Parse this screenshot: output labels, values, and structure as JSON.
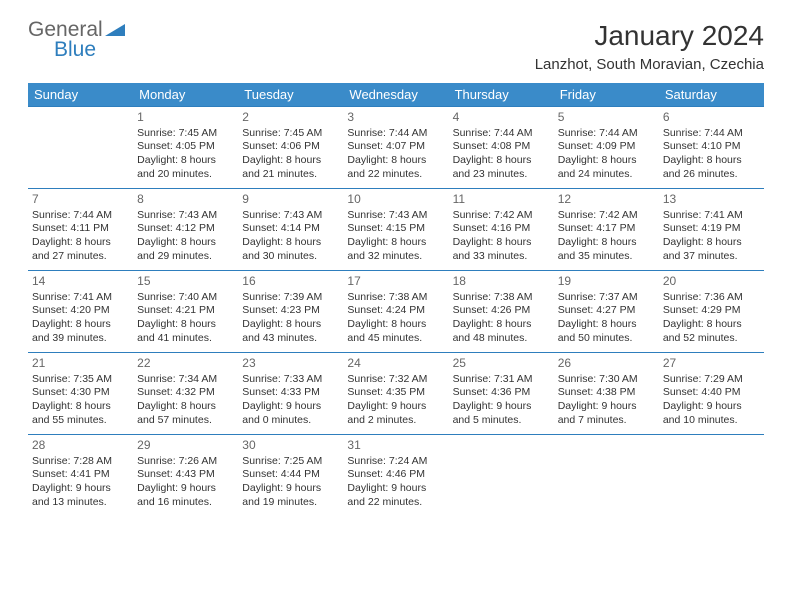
{
  "logo": {
    "line1": "General",
    "line2": "Blue"
  },
  "title": "January 2024",
  "location": "Lanzhot, South Moravian, Czechia",
  "colors": {
    "header_bg": "#3a8bc9",
    "header_text": "#ffffff",
    "row_border": "#2e7ebd",
    "logo_blue": "#2e7ebd",
    "logo_gray": "#666666",
    "text": "#333333"
  },
  "weekdays": [
    "Sunday",
    "Monday",
    "Tuesday",
    "Wednesday",
    "Thursday",
    "Friday",
    "Saturday"
  ],
  "weeks": [
    [
      null,
      {
        "day": "1",
        "sunrise": "Sunrise: 7:45 AM",
        "sunset": "Sunset: 4:05 PM",
        "dl1": "Daylight: 8 hours",
        "dl2": "and 20 minutes."
      },
      {
        "day": "2",
        "sunrise": "Sunrise: 7:45 AM",
        "sunset": "Sunset: 4:06 PM",
        "dl1": "Daylight: 8 hours",
        "dl2": "and 21 minutes."
      },
      {
        "day": "3",
        "sunrise": "Sunrise: 7:44 AM",
        "sunset": "Sunset: 4:07 PM",
        "dl1": "Daylight: 8 hours",
        "dl2": "and 22 minutes."
      },
      {
        "day": "4",
        "sunrise": "Sunrise: 7:44 AM",
        "sunset": "Sunset: 4:08 PM",
        "dl1": "Daylight: 8 hours",
        "dl2": "and 23 minutes."
      },
      {
        "day": "5",
        "sunrise": "Sunrise: 7:44 AM",
        "sunset": "Sunset: 4:09 PM",
        "dl1": "Daylight: 8 hours",
        "dl2": "and 24 minutes."
      },
      {
        "day": "6",
        "sunrise": "Sunrise: 7:44 AM",
        "sunset": "Sunset: 4:10 PM",
        "dl1": "Daylight: 8 hours",
        "dl2": "and 26 minutes."
      }
    ],
    [
      {
        "day": "7",
        "sunrise": "Sunrise: 7:44 AM",
        "sunset": "Sunset: 4:11 PM",
        "dl1": "Daylight: 8 hours",
        "dl2": "and 27 minutes."
      },
      {
        "day": "8",
        "sunrise": "Sunrise: 7:43 AM",
        "sunset": "Sunset: 4:12 PM",
        "dl1": "Daylight: 8 hours",
        "dl2": "and 29 minutes."
      },
      {
        "day": "9",
        "sunrise": "Sunrise: 7:43 AM",
        "sunset": "Sunset: 4:14 PM",
        "dl1": "Daylight: 8 hours",
        "dl2": "and 30 minutes."
      },
      {
        "day": "10",
        "sunrise": "Sunrise: 7:43 AM",
        "sunset": "Sunset: 4:15 PM",
        "dl1": "Daylight: 8 hours",
        "dl2": "and 32 minutes."
      },
      {
        "day": "11",
        "sunrise": "Sunrise: 7:42 AM",
        "sunset": "Sunset: 4:16 PM",
        "dl1": "Daylight: 8 hours",
        "dl2": "and 33 minutes."
      },
      {
        "day": "12",
        "sunrise": "Sunrise: 7:42 AM",
        "sunset": "Sunset: 4:17 PM",
        "dl1": "Daylight: 8 hours",
        "dl2": "and 35 minutes."
      },
      {
        "day": "13",
        "sunrise": "Sunrise: 7:41 AM",
        "sunset": "Sunset: 4:19 PM",
        "dl1": "Daylight: 8 hours",
        "dl2": "and 37 minutes."
      }
    ],
    [
      {
        "day": "14",
        "sunrise": "Sunrise: 7:41 AM",
        "sunset": "Sunset: 4:20 PM",
        "dl1": "Daylight: 8 hours",
        "dl2": "and 39 minutes."
      },
      {
        "day": "15",
        "sunrise": "Sunrise: 7:40 AM",
        "sunset": "Sunset: 4:21 PM",
        "dl1": "Daylight: 8 hours",
        "dl2": "and 41 minutes."
      },
      {
        "day": "16",
        "sunrise": "Sunrise: 7:39 AM",
        "sunset": "Sunset: 4:23 PM",
        "dl1": "Daylight: 8 hours",
        "dl2": "and 43 minutes."
      },
      {
        "day": "17",
        "sunrise": "Sunrise: 7:38 AM",
        "sunset": "Sunset: 4:24 PM",
        "dl1": "Daylight: 8 hours",
        "dl2": "and 45 minutes."
      },
      {
        "day": "18",
        "sunrise": "Sunrise: 7:38 AM",
        "sunset": "Sunset: 4:26 PM",
        "dl1": "Daylight: 8 hours",
        "dl2": "and 48 minutes."
      },
      {
        "day": "19",
        "sunrise": "Sunrise: 7:37 AM",
        "sunset": "Sunset: 4:27 PM",
        "dl1": "Daylight: 8 hours",
        "dl2": "and 50 minutes."
      },
      {
        "day": "20",
        "sunrise": "Sunrise: 7:36 AM",
        "sunset": "Sunset: 4:29 PM",
        "dl1": "Daylight: 8 hours",
        "dl2": "and 52 minutes."
      }
    ],
    [
      {
        "day": "21",
        "sunrise": "Sunrise: 7:35 AM",
        "sunset": "Sunset: 4:30 PM",
        "dl1": "Daylight: 8 hours",
        "dl2": "and 55 minutes."
      },
      {
        "day": "22",
        "sunrise": "Sunrise: 7:34 AM",
        "sunset": "Sunset: 4:32 PM",
        "dl1": "Daylight: 8 hours",
        "dl2": "and 57 minutes."
      },
      {
        "day": "23",
        "sunrise": "Sunrise: 7:33 AM",
        "sunset": "Sunset: 4:33 PM",
        "dl1": "Daylight: 9 hours",
        "dl2": "and 0 minutes."
      },
      {
        "day": "24",
        "sunrise": "Sunrise: 7:32 AM",
        "sunset": "Sunset: 4:35 PM",
        "dl1": "Daylight: 9 hours",
        "dl2": "and 2 minutes."
      },
      {
        "day": "25",
        "sunrise": "Sunrise: 7:31 AM",
        "sunset": "Sunset: 4:36 PM",
        "dl1": "Daylight: 9 hours",
        "dl2": "and 5 minutes."
      },
      {
        "day": "26",
        "sunrise": "Sunrise: 7:30 AM",
        "sunset": "Sunset: 4:38 PM",
        "dl1": "Daylight: 9 hours",
        "dl2": "and 7 minutes."
      },
      {
        "day": "27",
        "sunrise": "Sunrise: 7:29 AM",
        "sunset": "Sunset: 4:40 PM",
        "dl1": "Daylight: 9 hours",
        "dl2": "and 10 minutes."
      }
    ],
    [
      {
        "day": "28",
        "sunrise": "Sunrise: 7:28 AM",
        "sunset": "Sunset: 4:41 PM",
        "dl1": "Daylight: 9 hours",
        "dl2": "and 13 minutes."
      },
      {
        "day": "29",
        "sunrise": "Sunrise: 7:26 AM",
        "sunset": "Sunset: 4:43 PM",
        "dl1": "Daylight: 9 hours",
        "dl2": "and 16 minutes."
      },
      {
        "day": "30",
        "sunrise": "Sunrise: 7:25 AM",
        "sunset": "Sunset: 4:44 PM",
        "dl1": "Daylight: 9 hours",
        "dl2": "and 19 minutes."
      },
      {
        "day": "31",
        "sunrise": "Sunrise: 7:24 AM",
        "sunset": "Sunset: 4:46 PM",
        "dl1": "Daylight: 9 hours",
        "dl2": "and 22 minutes."
      },
      null,
      null,
      null
    ]
  ]
}
